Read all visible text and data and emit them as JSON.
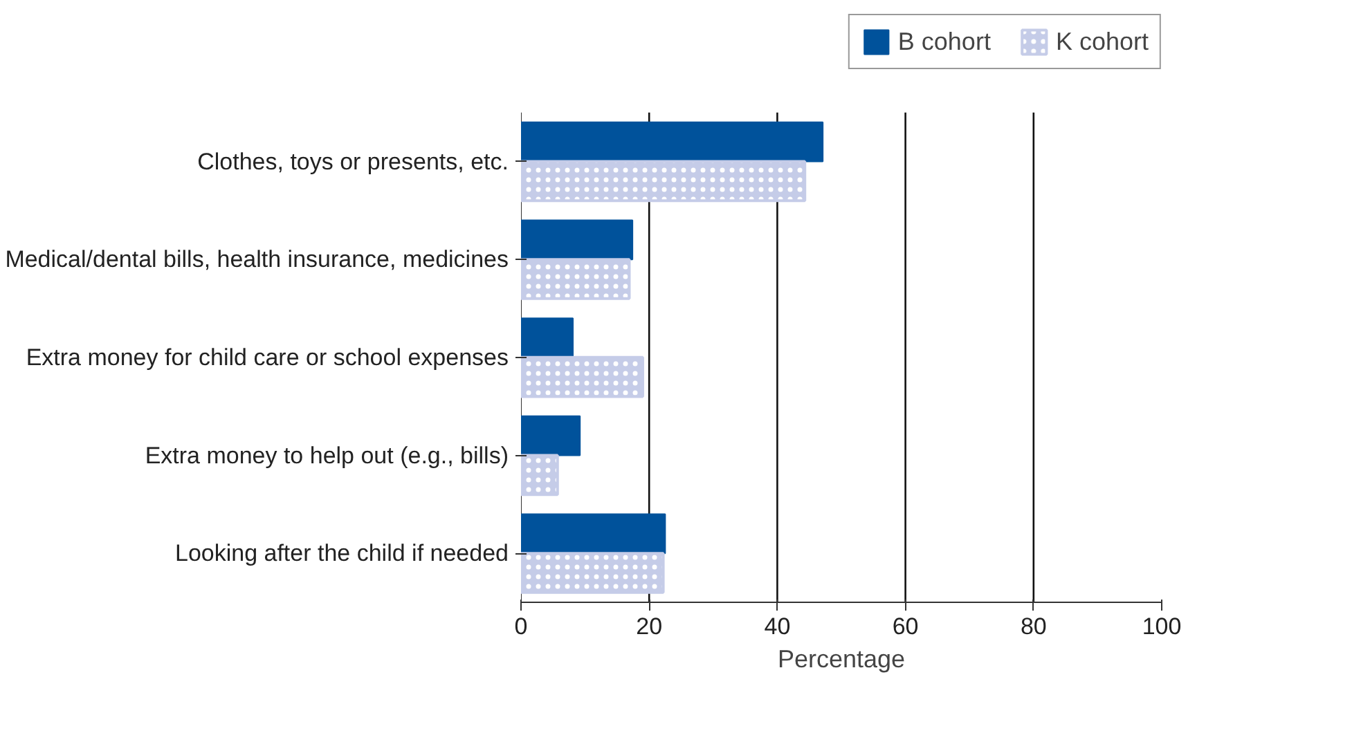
{
  "chart_data": {
    "type": "bar",
    "orientation": "horizontal",
    "xlabel": "Percentage",
    "categories": [
      "Clothes, toys or presents, etc.",
      "Medical/dental bills, health insurance, medicines",
      "Extra money for child care or school expenses",
      "Extra money to help out (e.g., bills)",
      "Looking after the child if needed"
    ],
    "series": [
      {
        "name": "B cohort",
        "color": "#00529b",
        "values": [
          47.1,
          17.4,
          8.1,
          9.2,
          22.5
        ]
      },
      {
        "name": "K cohort",
        "color": "#c5cce8",
        "values": [
          44.3,
          16.9,
          19.0,
          5.7,
          22.2
        ]
      }
    ],
    "xlim": [
      0,
      100
    ],
    "xticks": [
      0,
      20,
      40,
      60,
      80,
      100
    ],
    "grid": "x",
    "legend": "top right"
  }
}
